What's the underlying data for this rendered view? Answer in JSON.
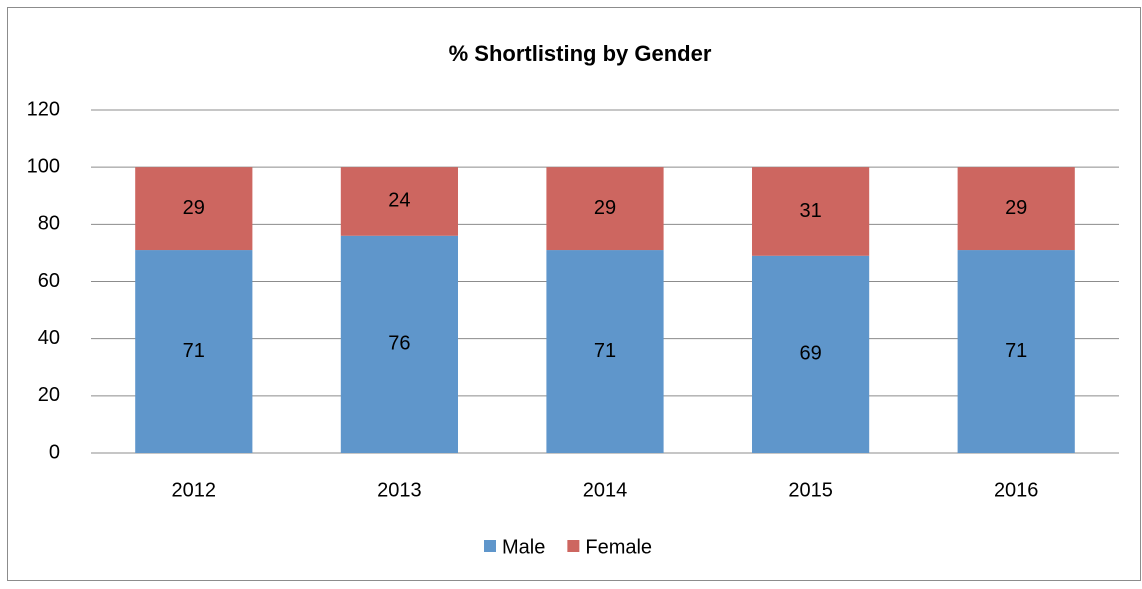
{
  "chart_data": {
    "type": "bar",
    "stacked": true,
    "title": "% Shortlisting by Gender",
    "categories": [
      "2012",
      "2013",
      "2014",
      "2015",
      "2016"
    ],
    "series": [
      {
        "name": "Male",
        "color": "#5f96cb",
        "values": [
          71,
          76,
          71,
          69,
          71
        ]
      },
      {
        "name": "Female",
        "color": "#cd6660",
        "values": [
          29,
          24,
          29,
          31,
          29
        ]
      }
    ],
    "ylim": [
      0,
      120
    ],
    "yticks": [
      0,
      20,
      40,
      60,
      80,
      100,
      120
    ],
    "grid": true,
    "legend": "bottom"
  }
}
